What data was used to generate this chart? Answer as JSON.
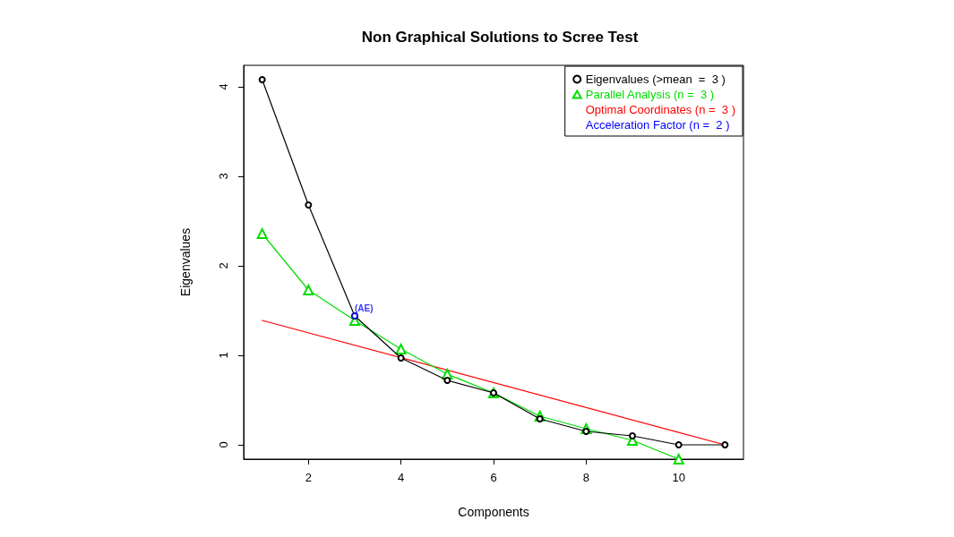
{
  "chart_data": {
    "type": "line",
    "title": "Non Graphical Solutions to Scree Test",
    "xlabel": "Components",
    "ylabel": "Eigenvalues",
    "xlim": [
      0.6,
      11.4
    ],
    "xticks": [
      2,
      4,
      6,
      8,
      10
    ],
    "ylim": [
      -0.16,
      4.24
    ],
    "yticks": [
      0,
      1,
      2,
      3,
      4
    ],
    "grid": false,
    "legend": "top right",
    "series": [
      {
        "name": "Eigenvalues (>mean  =  3 )",
        "color": "#000000",
        "marker": "circle",
        "x": [
          1,
          2,
          3,
          4,
          5,
          6,
          7,
          8,
          9,
          10,
          11
        ],
        "values": [
          4.08,
          2.68,
          1.44,
          0.97,
          0.72,
          0.58,
          0.29,
          0.15,
          0.1,
          0,
          0
        ]
      },
      {
        "name": "Parallel Analysis (n =  3 )",
        "color": "#00dd00",
        "marker": "triangle",
        "x": [
          1,
          2,
          3,
          4,
          5,
          6,
          7,
          8,
          9,
          10
        ],
        "values": [
          2.36,
          1.73,
          1.39,
          1.07,
          0.79,
          0.58,
          0.32,
          0.18,
          0.05,
          -0.16
        ]
      },
      {
        "name": "Optimal Coordinates (n =  3 )",
        "color": "#ff0000",
        "marker": "none",
        "x": [
          1,
          11
        ],
        "values": [
          1.39,
          0
        ]
      },
      {
        "name": "Acceleration Factor (n =  2 )",
        "color": "#0000ff",
        "type": "scatter",
        "marker": "none",
        "x": [
          3
        ],
        "values": [
          1.44
        ],
        "value_labels": [
          "(AE)"
        ]
      }
    ]
  }
}
